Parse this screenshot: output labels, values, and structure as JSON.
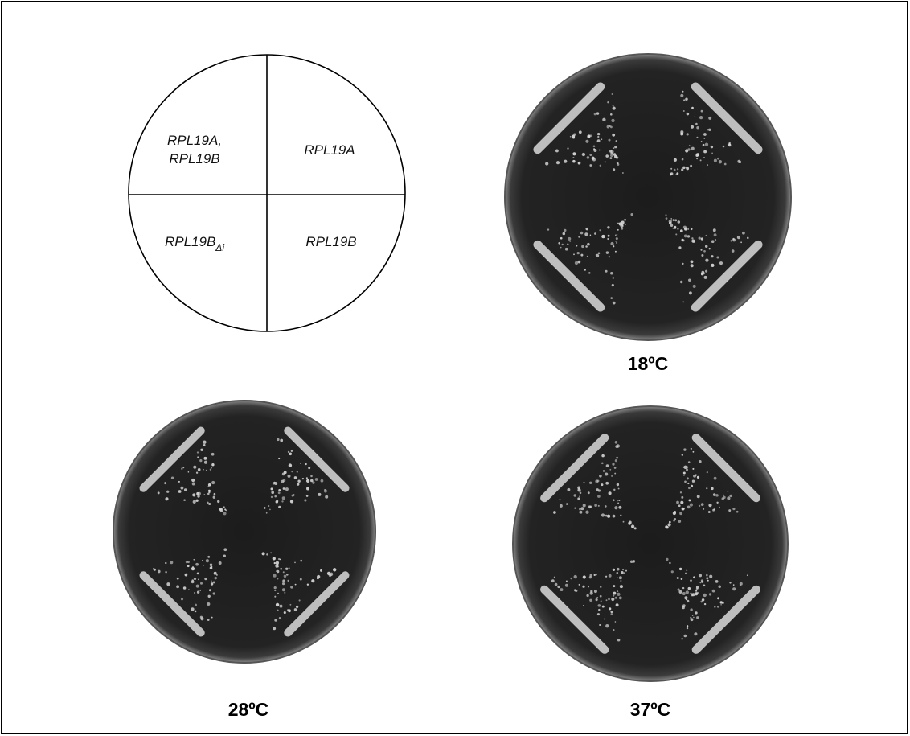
{
  "legend": {
    "quadrants": {
      "top_left": [
        "RPL19A,",
        "RPL19B"
      ],
      "top_right": "RPL19A",
      "bottom_left": {
        "base": "RPL19B",
        "subscript": "Δi"
      },
      "bottom_right": "RPL19B"
    }
  },
  "plates": [
    {
      "id": "plate-18",
      "temperature_label": "18ºC"
    },
    {
      "id": "plate-28",
      "temperature_label": "28ºC"
    },
    {
      "id": "plate-37",
      "temperature_label": "37ºC"
    }
  ],
  "colors": {
    "agar": "#222222",
    "colonies": "#d8d8d8",
    "rim": "#777777",
    "background": "#ffffff"
  }
}
